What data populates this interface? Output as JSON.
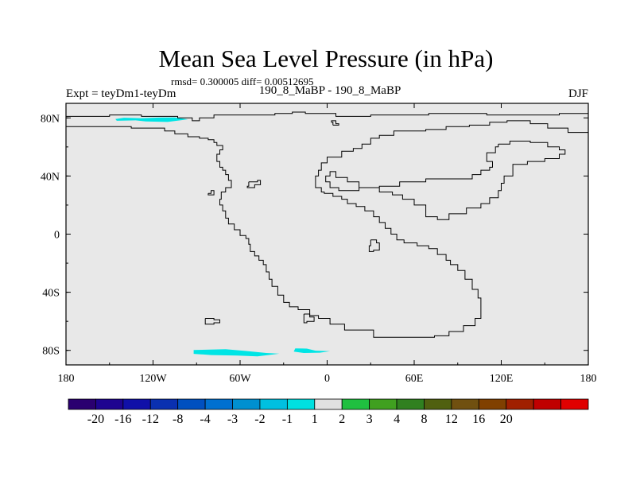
{
  "chart_data": {
    "type": "map",
    "title": "Mean Sea Level Pressure (in hPa)",
    "stats_text": "rmsd= 0.300005 diff= 0.00512695",
    "left_label": "Expt = teyDm1-teyDm",
    "center_label": "190_8_MaBP - 190_8_MaBP",
    "right_label": "DJF",
    "x_ticks": [
      {
        "value": -180,
        "label": "180"
      },
      {
        "value": -120,
        "label": "120W"
      },
      {
        "value": -60,
        "label": "60W"
      },
      {
        "value": 0,
        "label": "0"
      },
      {
        "value": 60,
        "label": "60E"
      },
      {
        "value": 120,
        "label": "120E"
      },
      {
        "value": 180,
        "label": "180"
      }
    ],
    "y_ticks": [
      {
        "value": 80,
        "label": "80N"
      },
      {
        "value": 40,
        "label": "40N"
      },
      {
        "value": 0,
        "label": "0"
      },
      {
        "value": -40,
        "label": "40S"
      },
      {
        "value": -80,
        "label": "80S"
      }
    ],
    "xlim": [
      -180,
      180
    ],
    "ylim": [
      -90,
      90
    ],
    "background_color": "#e8e8e8",
    "anomaly_regions": [
      {
        "name": "arctic-anomaly",
        "color": "#00e5e5",
        "range": "-2 to -1",
        "polygon": [
          [
            -145,
            78
          ],
          [
            -132,
            78.3
          ],
          [
            -125,
            77.6
          ],
          [
            -110,
            77.2
          ],
          [
            -96,
            79
          ],
          [
            -105,
            80.3
          ],
          [
            -116,
            80.2
          ],
          [
            -128,
            79.7
          ],
          [
            -140,
            80.1
          ],
          [
            -146,
            79.2
          ]
        ]
      },
      {
        "name": "antarctic-anomaly-west",
        "color": "#00e5e5",
        "range": "-2 to -1",
        "polygon": [
          [
            -92,
            -79.7
          ],
          [
            -70,
            -79.2
          ],
          [
            -55,
            -80.5
          ],
          [
            -42,
            -81.8
          ],
          [
            -33,
            -82.3
          ],
          [
            -48,
            -84.1
          ],
          [
            -62,
            -83.6
          ],
          [
            -80,
            -83.2
          ],
          [
            -92,
            -82.4
          ]
        ]
      },
      {
        "name": "antarctic-anomaly-east",
        "color": "#00e5e5",
        "range": "-2 to -1",
        "polygon": [
          [
            -22,
            -78.6
          ],
          [
            -14,
            -78.8
          ],
          [
            -8,
            -80.2
          ],
          [
            2,
            -80.6
          ],
          [
            -5,
            -81.6
          ],
          [
            -16,
            -81.8
          ],
          [
            -23,
            -80.8
          ]
        ]
      }
    ],
    "coastlines": [
      [
        [
          -180,
          81
        ],
        [
          -162,
          81
        ],
        [
          -150,
          82
        ],
        [
          -136,
          82
        ],
        [
          -128,
          81
        ],
        [
          -108,
          81
        ],
        [
          -103,
          80
        ],
        [
          -93,
          78
        ],
        [
          -88,
          80
        ],
        [
          -78,
          82
        ],
        [
          -50,
          82
        ],
        [
          -36,
          83
        ],
        [
          -24,
          84
        ],
        [
          -15,
          83
        ],
        [
          6,
          81
        ],
        [
          30,
          82
        ],
        [
          70,
          83
        ],
        [
          110,
          82
        ],
        [
          160,
          83
        ],
        [
          180,
          84
        ]
      ],
      [
        [
          -180,
          74
        ],
        [
          -150,
          74
        ],
        [
          -135,
          73
        ],
        [
          -122,
          73
        ],
        [
          -112,
          71
        ],
        [
          -105,
          69
        ],
        [
          -96,
          67
        ],
        [
          -88,
          66
        ],
        [
          -82,
          65
        ],
        [
          -78,
          63
        ],
        [
          -76,
          61
        ],
        [
          -72,
          58
        ],
        [
          -74,
          55
        ],
        [
          -76,
          50
        ],
        [
          -74,
          46
        ],
        [
          -72,
          44
        ],
        [
          -70,
          41
        ],
        [
          -68,
          37
        ],
        [
          -66,
          32
        ],
        [
          -70,
          29
        ],
        [
          -73,
          24
        ],
        [
          -74,
          20
        ],
        [
          -72,
          16
        ],
        [
          -70,
          11
        ],
        [
          -68,
          7
        ],
        [
          -64,
          3
        ],
        [
          -60,
          -1
        ],
        [
          -56,
          -3
        ],
        [
          -54,
          -7
        ],
        [
          -53,
          -12
        ],
        [
          -50,
          -15
        ],
        [
          -47,
          -18
        ],
        [
          -44,
          -21
        ],
        [
          -42,
          -26
        ],
        [
          -40,
          -31
        ],
        [
          -38,
          -36
        ],
        [
          -34,
          -42
        ],
        [
          -30,
          -47
        ],
        [
          -26,
          -50
        ],
        [
          -20,
          -52
        ],
        [
          -12,
          -56
        ],
        [
          -6,
          -58
        ],
        [
          2,
          -62
        ],
        [
          12,
          -66
        ],
        [
          32,
          -71
        ],
        [
          62,
          -71
        ],
        [
          74,
          -70
        ],
        [
          84,
          -67
        ],
        [
          94,
          -63
        ],
        [
          102,
          -58
        ],
        [
          106,
          -52
        ],
        [
          106,
          -44
        ],
        [
          104,
          -38
        ],
        [
          100,
          -31
        ],
        [
          95,
          -25
        ],
        [
          90,
          -21
        ],
        [
          85,
          -18
        ],
        [
          82,
          -14
        ],
        [
          76,
          -10
        ],
        [
          70,
          -8
        ],
        [
          62,
          -6
        ],
        [
          53,
          -4
        ],
        [
          48,
          0
        ],
        [
          44,
          4
        ],
        [
          40,
          8
        ],
        [
          36,
          12
        ],
        [
          32,
          16
        ],
        [
          26,
          19
        ],
        [
          20,
          21
        ],
        [
          14,
          24
        ],
        [
          10,
          26
        ],
        [
          4,
          28
        ],
        [
          -2,
          29
        ],
        [
          -4,
          32
        ],
        [
          -8,
          36
        ],
        [
          -8,
          40
        ],
        [
          -6,
          44
        ],
        [
          -4,
          49
        ],
        [
          0,
          53
        ],
        [
          10,
          57
        ],
        [
          18,
          59
        ],
        [
          24,
          62
        ],
        [
          30,
          66
        ],
        [
          36,
          68
        ],
        [
          46,
          71
        ],
        [
          68,
          72
        ],
        [
          82,
          74
        ],
        [
          98,
          75
        ],
        [
          112,
          77
        ],
        [
          124,
          78
        ],
        [
          140,
          76
        ],
        [
          152,
          73
        ],
        [
          166,
          70
        ],
        [
          180,
          69
        ]
      ],
      [
        [
          118,
          62
        ],
        [
          126,
          64
        ],
        [
          140,
          63
        ],
        [
          152,
          60
        ],
        [
          160,
          58
        ],
        [
          164,
          55
        ],
        [
          160,
          52
        ],
        [
          150,
          50
        ],
        [
          138,
          48
        ],
        [
          128,
          40
        ],
        [
          122,
          35
        ],
        [
          120,
          30
        ],
        [
          118,
          25
        ],
        [
          112,
          21
        ],
        [
          106,
          18
        ],
        [
          96,
          14
        ],
        [
          84,
          10
        ],
        [
          76,
          12
        ],
        [
          68,
          20
        ],
        [
          60,
          24
        ],
        [
          52,
          27
        ],
        [
          45,
          29
        ],
        [
          36,
          32
        ],
        [
          22,
          36
        ],
        [
          14,
          39
        ],
        [
          6,
          43
        ],
        [
          2,
          40
        ],
        [
          -1,
          36
        ],
        [
          2,
          32
        ],
        [
          8,
          30
        ],
        [
          22,
          32
        ],
        [
          36,
          33
        ],
        [
          50,
          36
        ],
        [
          68,
          38
        ],
        [
          86,
          38
        ],
        [
          100,
          41
        ],
        [
          106,
          44
        ],
        [
          112,
          46
        ],
        [
          114,
          50
        ],
        [
          110,
          56
        ],
        [
          116,
          60
        ],
        [
          118,
          62
        ]
      ],
      [
        [
          -54,
          36
        ],
        [
          -48,
          37
        ],
        [
          -46,
          34
        ],
        [
          -50,
          32
        ],
        [
          -55,
          33
        ],
        [
          -54,
          36
        ]
      ],
      [
        [
          -82,
          28
        ],
        [
          -80,
          30
        ],
        [
          -78,
          27
        ],
        [
          -82,
          28
        ]
      ],
      [
        [
          -84,
          -58
        ],
        [
          -78,
          -59
        ],
        [
          -74,
          -61
        ],
        [
          -78,
          -62
        ],
        [
          -84,
          -58
        ]
      ],
      [
        [
          -16,
          -55
        ],
        [
          -12,
          -57
        ],
        [
          -9,
          -60
        ],
        [
          -14,
          -61
        ],
        [
          -16,
          -55
        ]
      ],
      [
        [
          30,
          -4
        ],
        [
          34,
          -6
        ],
        [
          36,
          -11
        ],
        [
          32,
          -12
        ],
        [
          29,
          -8
        ],
        [
          30,
          -4
        ]
      ],
      [
        [
          4,
          75
        ],
        [
          8,
          76
        ],
        [
          6,
          78
        ],
        [
          3,
          77
        ],
        [
          4,
          75
        ]
      ]
    ],
    "colorbar": {
      "colors": [
        "#2a0070",
        "#1e0490",
        "#1010a8",
        "#0a30b0",
        "#0050c0",
        "#0070d0",
        "#0090d0",
        "#00c0e0",
        "#00e0e0",
        "#e0e0e0",
        "#20c040",
        "#40a020",
        "#308020",
        "#506010",
        "#705010",
        "#804000",
        "#a02000",
        "#c00000",
        "#e00000"
      ],
      "labels": [
        "-20",
        "-16",
        "-12",
        "-8",
        "-4",
        "-3",
        "-2",
        "-1",
        "1",
        "2",
        "3",
        "4",
        "8",
        "12",
        "16",
        "20"
      ],
      "label_after_box": [
        1,
        2,
        3,
        4,
        5,
        6,
        7,
        8,
        9,
        10,
        11,
        12,
        13,
        14,
        15,
        16
      ]
    }
  }
}
